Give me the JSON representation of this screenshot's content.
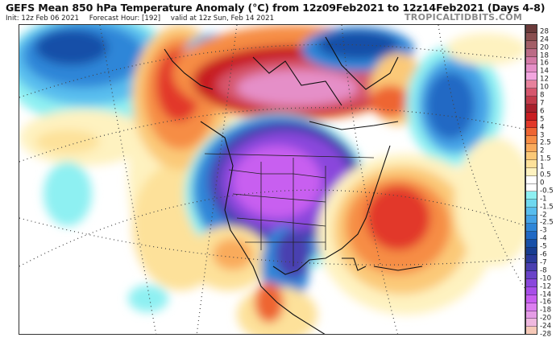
{
  "header": {
    "title": "GEFS Mean 850 hPa Temperature Anomaly (°C) from 12z09Feb2021 to 12z14Feb2021 (Days 4-8)",
    "init": "Init: 12z Feb 06 2021",
    "forecast_hour": "Forecast Hour: [192]",
    "valid": "valid at 12z Sun, Feb 14 2021",
    "brand": "TROPICALTIDBITS.COM"
  },
  "map": {
    "projection": "polar stereographic, North America",
    "variable": "850 hPa Temperature Anomaly",
    "units": "°C",
    "features": [
      {
        "region": "Central US / Canada Prairies",
        "anomaly": "strong cold (-14 to -20)",
        "color": "#c24fe8"
      },
      {
        "region": "Canadian Arctic Archipelago",
        "anomaly": "strong warm (+12 to +16)",
        "color": "#e27fb6"
      },
      {
        "region": "Greenland",
        "anomaly": "cold (-3 to -6)",
        "color": "#1f62b8"
      },
      {
        "region": "Bering Sea / E Siberia",
        "anomaly": "cold (-4 to -6)",
        "color": "#1c4f9c"
      },
      {
        "region": "Gulf of Alaska / Aleutians",
        "anomaly": "warm (+3 to +5)",
        "color": "#e5502c"
      },
      {
        "region": "North Pacific (NW corner)",
        "anomaly": "cold (-3 to -5)",
        "color": "#2a74c6"
      },
      {
        "region": "Western Atlantic off SE US",
        "anomaly": "warm (+4 to +5)",
        "color": "#e4552f"
      },
      {
        "region": "North Atlantic (S of Greenland)",
        "anomaly": "cold (-3 to -5)",
        "color": "#1f5fb5"
      }
    ]
  },
  "colorbar": {
    "levels": [
      {
        "label": "28",
        "color": "#6b3a3a"
      },
      {
        "label": "24",
        "color": "#8a4f50"
      },
      {
        "label": "20",
        "color": "#a35f67"
      },
      {
        "label": "18",
        "color": "#bb6b86"
      },
      {
        "label": "16",
        "color": "#d47aa6"
      },
      {
        "label": "14",
        "color": "#e58fc8"
      },
      {
        "label": "12",
        "color": "#f2a6df"
      },
      {
        "label": "10",
        "color": "#e7829c"
      },
      {
        "label": "8",
        "color": "#d6566d"
      },
      {
        "label": "7",
        "color": "#c23b4a"
      },
      {
        "label": "6",
        "color": "#a8202c"
      },
      {
        "label": "5",
        "color": "#c81e22"
      },
      {
        "label": "4",
        "color": "#e2392a"
      },
      {
        "label": "3",
        "color": "#ee6533"
      },
      {
        "label": "2.5",
        "color": "#f68d45"
      },
      {
        "label": "2",
        "color": "#f9ab5c"
      },
      {
        "label": "1.5",
        "color": "#fbc978"
      },
      {
        "label": "1",
        "color": "#fde19a"
      },
      {
        "label": "0.5",
        "color": "#fef2c0"
      },
      {
        "label": "0",
        "color": "#ffffff"
      },
      {
        "label": "-0.5",
        "color": "#ffffff"
      },
      {
        "label": "-1",
        "color": "#8ef0f2"
      },
      {
        "label": "-1.5",
        "color": "#6fd8f0"
      },
      {
        "label": "-2",
        "color": "#58bdee"
      },
      {
        "label": "-2.5",
        "color": "#44a2e6"
      },
      {
        "label": "-3",
        "color": "#2f86d8"
      },
      {
        "label": "-4",
        "color": "#2069c4"
      },
      {
        "label": "-5",
        "color": "#1850a8"
      },
      {
        "label": "-6",
        "color": "#183d91"
      },
      {
        "label": "-7",
        "color": "#2a3a9a"
      },
      {
        "label": "-8",
        "color": "#4a3fb0"
      },
      {
        "label": "-10",
        "color": "#6a43c8"
      },
      {
        "label": "-12",
        "color": "#8a47dc"
      },
      {
        "label": "-14",
        "color": "#a84ee8"
      },
      {
        "label": "-16",
        "color": "#c85ef0"
      },
      {
        "label": "-18",
        "color": "#dc7ef0"
      },
      {
        "label": "-20",
        "color": "#e59ce6"
      },
      {
        "label": "-24",
        "color": "#efb8df"
      },
      {
        "label": "-28",
        "color": "#f6c9b8"
      }
    ]
  }
}
